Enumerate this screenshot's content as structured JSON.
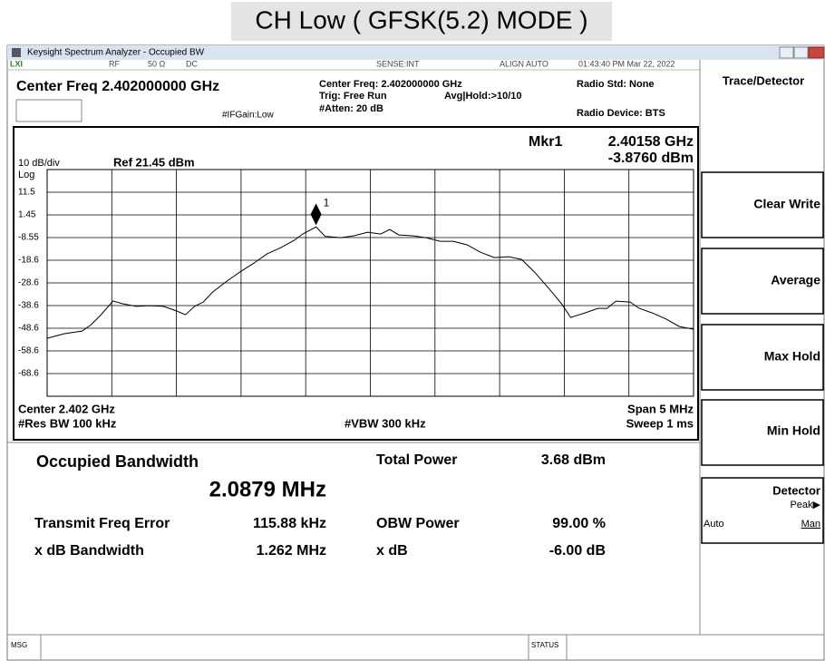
{
  "page_title": "CH Low ( GFSK(5.2) MODE )",
  "window": {
    "title": "Keysight Spectrum Analyzer - Occupied BW",
    "lxi": "LXI"
  },
  "status_row": {
    "rf": "RF",
    "impedance": "50 Ω",
    "coupling": "DC",
    "sense": "SENSE:INT",
    "align": "ALIGN AUTO",
    "time": "01:43:40 PM Mar 22, 2022"
  },
  "header": {
    "center_freq": "Center Freq 2.402000000 GHz",
    "ifgain": "#IFGain:Low",
    "center_freq_info": "Center Freq: 2.402000000 GHz",
    "trig": "Trig: Free Run",
    "avg_hold": "Avg|Hold:>10/10",
    "atten": "#Atten: 20 dB",
    "radio_std": "Radio Std: None",
    "radio_device": "Radio Device: BTS"
  },
  "chart_data": {
    "type": "line",
    "scale_label": "10 dB/div",
    "ref_label": "Ref 21.45 dBm",
    "scale_type": "Log",
    "marker_readout": {
      "name": "Mkr1",
      "freq": "2.40158 GHz",
      "amp": "-3.8760 dBm"
    },
    "marker": {
      "label": "1",
      "x": 2.40158,
      "value": -3.876
    },
    "color": "#000000",
    "grid": true,
    "xlim": [
      2.3995,
      2.4045
    ],
    "ylim": [
      -78.55,
      21.45
    ],
    "yticks": [
      {
        "value": 11.45,
        "label": "11.5"
      },
      1.45,
      -8.55,
      {
        "value": -18.55,
        "label": "-18.6"
      },
      {
        "value": -28.55,
        "label": "-28.6"
      },
      {
        "value": -38.55,
        "label": "-38.6"
      },
      {
        "value": -48.55,
        "label": "-48.6"
      },
      {
        "value": -58.55,
        "label": "-58.6"
      },
      {
        "value": -68.55,
        "label": "-68.6"
      }
    ],
    "x": [
      2.3995,
      2.39963,
      2.39977,
      2.39984,
      2.39991,
      2.40001,
      2.40008,
      2.40019,
      2.40029,
      2.4004,
      2.4005,
      2.40057,
      2.40064,
      2.40071,
      2.40078,
      2.40089,
      2.40099,
      2.4011,
      2.4012,
      2.40131,
      2.40141,
      2.40148,
      2.40158,
      2.40165,
      2.40177,
      2.40187,
      2.40198,
      2.40208,
      2.40215,
      2.40222,
      2.40233,
      2.40243,
      2.40254,
      2.40264,
      2.40275,
      2.40285,
      2.40296,
      2.40307,
      2.40317,
      2.40327,
      2.40338,
      2.40348,
      2.40355,
      2.40366,
      2.40376,
      2.40383,
      2.4039,
      2.40401,
      2.40408,
      2.40418,
      2.40429,
      2.40439,
      2.4045
    ],
    "values": [
      -53.0,
      -51.0,
      -49.8,
      -47.0,
      -43.0,
      -36.5,
      -37.7,
      -38.9,
      -38.6,
      -38.9,
      -40.9,
      -42.6,
      -38.9,
      -36.9,
      -32.6,
      -27.8,
      -23.8,
      -19.8,
      -15.8,
      -12.9,
      -9.8,
      -6.9,
      -3.876,
      -8.0,
      -8.6,
      -7.8,
      -6.2,
      -7.0,
      -5.0,
      -7.4,
      -7.8,
      -8.6,
      -10.2,
      -10.2,
      -11.8,
      -15.0,
      -17.4,
      -17.0,
      -18.2,
      -23.8,
      -31.0,
      -37.8,
      -43.8,
      -41.8,
      -39.8,
      -39.8,
      -36.6,
      -37.0,
      -39.8,
      -41.8,
      -44.6,
      -47.8,
      -49.0
    ],
    "center_label": "Center  2.402 GHz",
    "span_label": "Span 5 MHz",
    "rbw_label": "#Res BW  100 kHz",
    "vbw_label": "#VBW  300 kHz",
    "sweep_label": "Sweep  1 ms"
  },
  "results": {
    "obw_title": "Occupied Bandwidth",
    "obw_value": "2.0879 MHz",
    "total_power_label": "Total Power",
    "total_power_value": "3.68 dBm",
    "freq_error_label": "Transmit Freq Error",
    "freq_error_value": "115.88 kHz",
    "obw_power_label": "OBW Power",
    "obw_power_value": "99.00 %",
    "xdb_bw_label": "x dB Bandwidth",
    "xdb_bw_value": "1.262 MHz",
    "xdb_label": "x dB",
    "xdb_value": "-6.00 dB"
  },
  "softkeys": {
    "menu": "Trace/Detector",
    "clear_write": "Clear Write",
    "average": "Average",
    "max_hold": "Max Hold",
    "min_hold": "Min Hold",
    "detector": "Detector",
    "detector_value": "Peak▶",
    "auto": "Auto",
    "man": "Man"
  },
  "footer": {
    "msg": "MSG",
    "status": "STATUS"
  }
}
